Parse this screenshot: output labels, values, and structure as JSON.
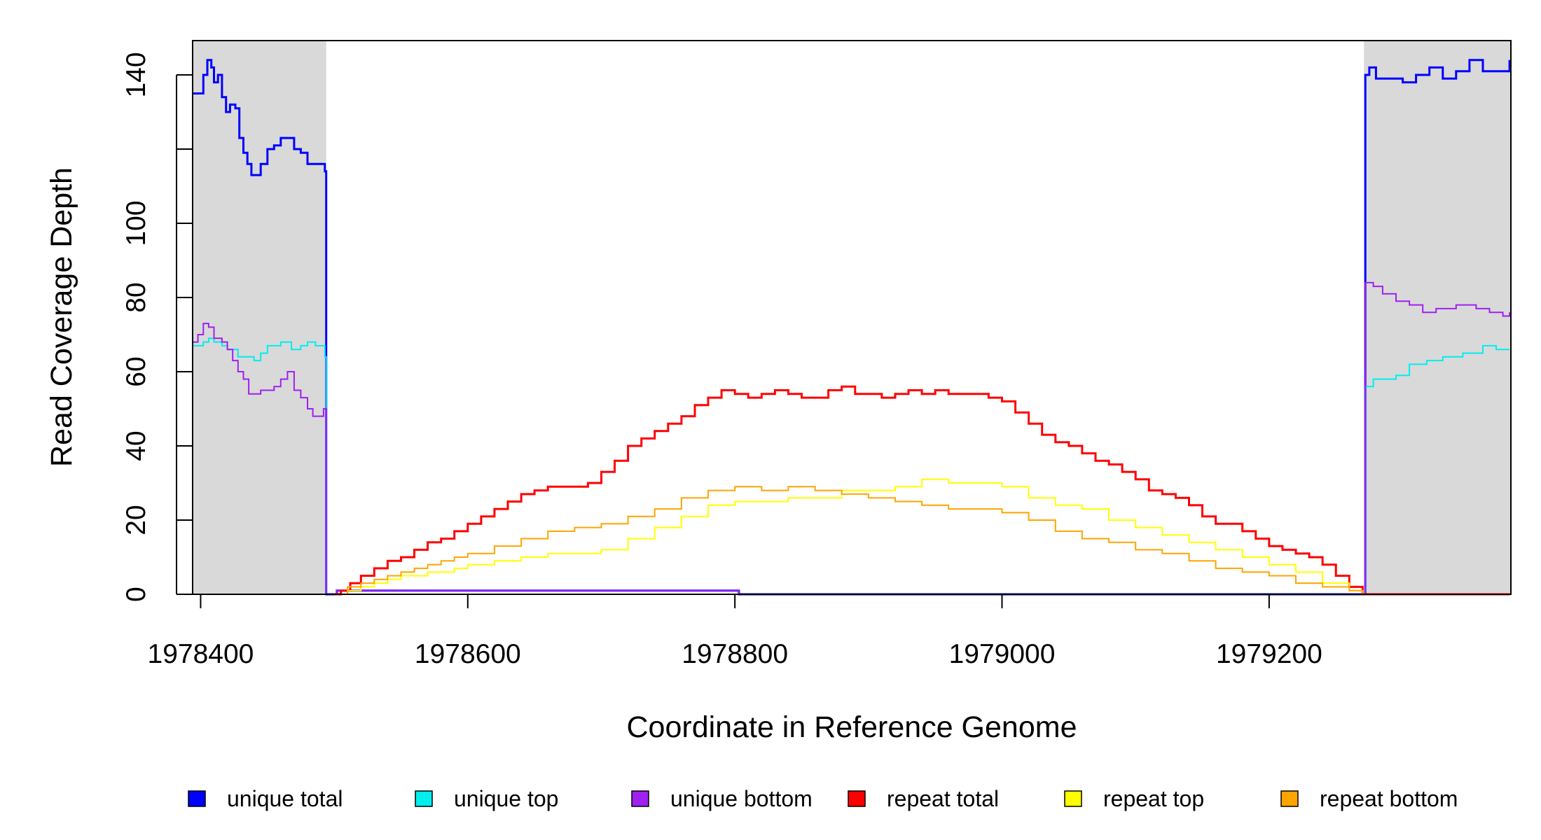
{
  "chart_data": {
    "type": "line",
    "title": "",
    "xlabel": "Coordinate in Reference Genome",
    "ylabel": "Read Coverage Depth",
    "xlim": [
      1978394,
      1979381
    ],
    "ylim": [
      0,
      150
    ],
    "x_ticks": [
      1978400,
      1978600,
      1978800,
      1979000,
      1979200
    ],
    "x_tick_labels": [
      "1978400",
      "1978600",
      "1978800",
      "1979000",
      "1979200"
    ],
    "y_ticks": [
      0,
      20,
      40,
      60,
      80,
      100,
      120,
      140
    ],
    "y_tick_labels": [
      "0",
      "20",
      "40",
      "60",
      "80",
      "100",
      "",
      "140"
    ],
    "grid": false,
    "legend_position": "bottom",
    "shaded_regions": [
      {
        "x0": 1978394,
        "x1": 1978494,
        "color": "#d9d9d9"
      },
      {
        "x0": 1979271,
        "x1": 1979381,
        "color": "#d9d9d9"
      }
    ],
    "series": [
      {
        "name": "unique total",
        "color": "#0000ff",
        "width": 3,
        "points": [
          [
            1978394,
            135
          ],
          [
            1978398,
            135
          ],
          [
            1978402,
            140
          ],
          [
            1978405,
            144
          ],
          [
            1978408,
            142
          ],
          [
            1978410,
            138
          ],
          [
            1978413,
            140
          ],
          [
            1978416,
            134
          ],
          [
            1978419,
            130
          ],
          [
            1978422,
            132
          ],
          [
            1978426,
            131
          ],
          [
            1978429,
            123
          ],
          [
            1978432,
            119
          ],
          [
            1978435,
            116
          ],
          [
            1978438,
            113
          ],
          [
            1978442,
            113
          ],
          [
            1978445,
            116
          ],
          [
            1978450,
            120
          ],
          [
            1978455,
            121
          ],
          [
            1978460,
            123
          ],
          [
            1978465,
            123
          ],
          [
            1978470,
            120
          ],
          [
            1978475,
            119
          ],
          [
            1978480,
            116
          ],
          [
            1978484,
            116
          ],
          [
            1978488,
            116
          ],
          [
            1978493,
            114
          ],
          [
            1978494,
            0
          ],
          [
            1978502,
            1
          ],
          [
            1978802,
            1
          ],
          [
            1978803,
            0
          ],
          [
            1979270,
            0
          ],
          [
            1979272,
            140
          ],
          [
            1979275,
            142
          ],
          [
            1979280,
            139
          ],
          [
            1979290,
            139
          ],
          [
            1979300,
            138
          ],
          [
            1979310,
            140
          ],
          [
            1979320,
            142
          ],
          [
            1979330,
            139
          ],
          [
            1979340,
            141
          ],
          [
            1979350,
            144
          ],
          [
            1979360,
            141
          ],
          [
            1979370,
            141
          ],
          [
            1979380,
            144
          ]
        ]
      },
      {
        "name": "unique top",
        "color": "#00eeee",
        "width": 2,
        "points": [
          [
            1978394,
            67
          ],
          [
            1978398,
            67
          ],
          [
            1978402,
            68
          ],
          [
            1978406,
            69
          ],
          [
            1978410,
            68
          ],
          [
            1978416,
            67
          ],
          [
            1978420,
            66
          ],
          [
            1978428,
            64
          ],
          [
            1978435,
            64
          ],
          [
            1978440,
            63
          ],
          [
            1978445,
            65
          ],
          [
            1978450,
            67
          ],
          [
            1978460,
            68
          ],
          [
            1978468,
            66
          ],
          [
            1978475,
            67
          ],
          [
            1978480,
            68
          ],
          [
            1978486,
            67
          ],
          [
            1978493,
            64
          ],
          [
            1978494,
            0
          ],
          [
            1979270,
            0
          ],
          [
            1979272,
            56
          ],
          [
            1979278,
            58
          ],
          [
            1979285,
            58
          ],
          [
            1979295,
            59
          ],
          [
            1979305,
            62
          ],
          [
            1979318,
            63
          ],
          [
            1979330,
            64
          ],
          [
            1979345,
            65
          ],
          [
            1979360,
            67
          ],
          [
            1979370,
            66
          ],
          [
            1979380,
            66
          ]
        ]
      },
      {
        "name": "unique bottom",
        "color": "#a020f0",
        "width": 2,
        "points": [
          [
            1978394,
            68
          ],
          [
            1978398,
            70
          ],
          [
            1978402,
            73
          ],
          [
            1978406,
            72
          ],
          [
            1978410,
            69
          ],
          [
            1978416,
            68
          ],
          [
            1978420,
            66
          ],
          [
            1978424,
            63
          ],
          [
            1978428,
            60
          ],
          [
            1978432,
            58
          ],
          [
            1978436,
            54
          ],
          [
            1978440,
            54
          ],
          [
            1978445,
            55
          ],
          [
            1978450,
            55
          ],
          [
            1978455,
            56
          ],
          [
            1978460,
            58
          ],
          [
            1978465,
            60
          ],
          [
            1978470,
            55
          ],
          [
            1978475,
            53
          ],
          [
            1978480,
            50
          ],
          [
            1978484,
            48
          ],
          [
            1978488,
            48
          ],
          [
            1978492,
            50
          ],
          [
            1978494,
            0
          ],
          [
            1978502,
            1
          ],
          [
            1978802,
            1
          ],
          [
            1978803,
            0
          ],
          [
            1979270,
            0
          ],
          [
            1979272,
            84
          ],
          [
            1979278,
            83
          ],
          [
            1979285,
            81
          ],
          [
            1979295,
            79
          ],
          [
            1979305,
            78
          ],
          [
            1979315,
            76
          ],
          [
            1979325,
            77
          ],
          [
            1979340,
            78
          ],
          [
            1979355,
            77
          ],
          [
            1979365,
            76
          ],
          [
            1979375,
            75
          ],
          [
            1979380,
            76
          ]
        ]
      },
      {
        "name": "repeat total",
        "color": "#ff0000",
        "width": 3,
        "points": [
          [
            1978500,
            0
          ],
          [
            1978505,
            1
          ],
          [
            1978512,
            3
          ],
          [
            1978520,
            5
          ],
          [
            1978530,
            7
          ],
          [
            1978540,
            9
          ],
          [
            1978550,
            10
          ],
          [
            1978560,
            12
          ],
          [
            1978570,
            14
          ],
          [
            1978580,
            15
          ],
          [
            1978590,
            17
          ],
          [
            1978600,
            19
          ],
          [
            1978610,
            21
          ],
          [
            1978620,
            23
          ],
          [
            1978630,
            25
          ],
          [
            1978640,
            27
          ],
          [
            1978650,
            28
          ],
          [
            1978660,
            29
          ],
          [
            1978670,
            29
          ],
          [
            1978680,
            29
          ],
          [
            1978690,
            30
          ],
          [
            1978700,
            33
          ],
          [
            1978710,
            36
          ],
          [
            1978720,
            40
          ],
          [
            1978730,
            42
          ],
          [
            1978740,
            44
          ],
          [
            1978750,
            46
          ],
          [
            1978760,
            48
          ],
          [
            1978770,
            51
          ],
          [
            1978780,
            53
          ],
          [
            1978790,
            55
          ],
          [
            1978800,
            54
          ],
          [
            1978810,
            53
          ],
          [
            1978820,
            54
          ],
          [
            1978830,
            55
          ],
          [
            1978840,
            54
          ],
          [
            1978850,
            53
          ],
          [
            1978860,
            53
          ],
          [
            1978870,
            55
          ],
          [
            1978880,
            56
          ],
          [
            1978890,
            54
          ],
          [
            1978900,
            54
          ],
          [
            1978910,
            53
          ],
          [
            1978920,
            54
          ],
          [
            1978930,
            55
          ],
          [
            1978940,
            54
          ],
          [
            1978950,
            55
          ],
          [
            1978960,
            54
          ],
          [
            1978970,
            54
          ],
          [
            1978980,
            54
          ],
          [
            1978990,
            53
          ],
          [
            1979000,
            52
          ],
          [
            1979010,
            49
          ],
          [
            1979020,
            46
          ],
          [
            1979030,
            43
          ],
          [
            1979040,
            41
          ],
          [
            1979050,
            40
          ],
          [
            1979060,
            38
          ],
          [
            1979070,
            36
          ],
          [
            1979080,
            35
          ],
          [
            1979090,
            33
          ],
          [
            1979100,
            31
          ],
          [
            1979110,
            28
          ],
          [
            1979120,
            27
          ],
          [
            1979130,
            26
          ],
          [
            1979140,
            24
          ],
          [
            1979150,
            21
          ],
          [
            1979160,
            19
          ],
          [
            1979170,
            19
          ],
          [
            1979180,
            17
          ],
          [
            1979190,
            15
          ],
          [
            1979200,
            13
          ],
          [
            1979210,
            12
          ],
          [
            1979220,
            11
          ],
          [
            1979230,
            10
          ],
          [
            1979240,
            8
          ],
          [
            1979250,
            5
          ],
          [
            1979260,
            2
          ],
          [
            1979270,
            0
          ],
          [
            1979380,
            0
          ]
        ]
      },
      {
        "name": "repeat top",
        "color": "#ffff00",
        "width": 2,
        "points": [
          [
            1978500,
            0
          ],
          [
            1978510,
            1
          ],
          [
            1978520,
            2
          ],
          [
            1978530,
            3
          ],
          [
            1978540,
            4
          ],
          [
            1978550,
            5
          ],
          [
            1978560,
            5
          ],
          [
            1978570,
            6
          ],
          [
            1978580,
            6
          ],
          [
            1978590,
            7
          ],
          [
            1978600,
            8
          ],
          [
            1978620,
            9
          ],
          [
            1978640,
            10
          ],
          [
            1978660,
            11
          ],
          [
            1978680,
            11
          ],
          [
            1978700,
            12
          ],
          [
            1978720,
            15
          ],
          [
            1978740,
            18
          ],
          [
            1978760,
            21
          ],
          [
            1978780,
            24
          ],
          [
            1978800,
            25
          ],
          [
            1978820,
            25
          ],
          [
            1978840,
            26
          ],
          [
            1978860,
            26
          ],
          [
            1978880,
            28
          ],
          [
            1978900,
            28
          ],
          [
            1978920,
            29
          ],
          [
            1978940,
            31
          ],
          [
            1978960,
            30
          ],
          [
            1978980,
            30
          ],
          [
            1979000,
            29
          ],
          [
            1979020,
            26
          ],
          [
            1979040,
            24
          ],
          [
            1979060,
            23
          ],
          [
            1979080,
            20
          ],
          [
            1979100,
            18
          ],
          [
            1979120,
            16
          ],
          [
            1979140,
            14
          ],
          [
            1979160,
            12
          ],
          [
            1979180,
            10
          ],
          [
            1979200,
            8
          ],
          [
            1979220,
            6
          ],
          [
            1979240,
            3
          ],
          [
            1979260,
            1
          ],
          [
            1979270,
            0
          ],
          [
            1979380,
            0
          ]
        ]
      },
      {
        "name": "repeat bottom",
        "color": "#ffa500",
        "width": 2,
        "points": [
          [
            1978500,
            0
          ],
          [
            1978510,
            2
          ],
          [
            1978520,
            3
          ],
          [
            1978530,
            4
          ],
          [
            1978540,
            5
          ],
          [
            1978550,
            6
          ],
          [
            1978560,
            7
          ],
          [
            1978570,
            8
          ],
          [
            1978580,
            9
          ],
          [
            1978590,
            10
          ],
          [
            1978600,
            11
          ],
          [
            1978620,
            13
          ],
          [
            1978640,
            15
          ],
          [
            1978660,
            17
          ],
          [
            1978680,
            18
          ],
          [
            1978700,
            19
          ],
          [
            1978720,
            21
          ],
          [
            1978740,
            23
          ],
          [
            1978760,
            26
          ],
          [
            1978780,
            28
          ],
          [
            1978800,
            29
          ],
          [
            1978820,
            28
          ],
          [
            1978840,
            29
          ],
          [
            1978860,
            28
          ],
          [
            1978880,
            27
          ],
          [
            1978900,
            26
          ],
          [
            1978920,
            25
          ],
          [
            1978940,
            24
          ],
          [
            1978960,
            23
          ],
          [
            1978980,
            23
          ],
          [
            1979000,
            22
          ],
          [
            1979020,
            20
          ],
          [
            1979040,
            17
          ],
          [
            1979060,
            15
          ],
          [
            1979080,
            14
          ],
          [
            1979100,
            12
          ],
          [
            1979120,
            11
          ],
          [
            1979140,
            9
          ],
          [
            1979160,
            7
          ],
          [
            1979180,
            6
          ],
          [
            1979200,
            5
          ],
          [
            1979220,
            3
          ],
          [
            1979240,
            2
          ],
          [
            1979260,
            1
          ],
          [
            1979270,
            0
          ],
          [
            1979380,
            0
          ]
        ]
      }
    ]
  }
}
